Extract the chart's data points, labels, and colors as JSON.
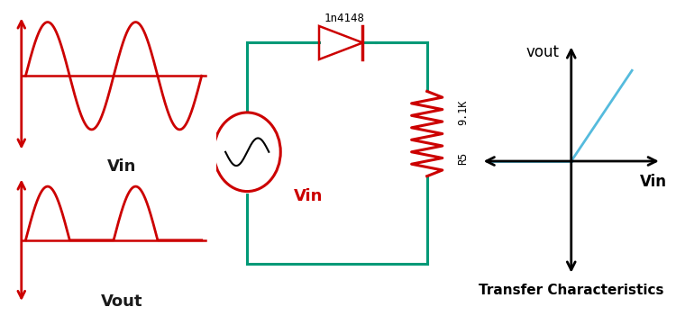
{
  "bg_color": "#ffffff",
  "red_color": "#cc0000",
  "green_color": "#009977",
  "blue_color": "#55bbdd",
  "black_color": "#000000",
  "vin_label": "Vin",
  "vout_label": "Vout",
  "diode_label": "1n4148",
  "resistor_label": "9.1K",
  "resistor_name": "R5",
  "vin_circuit_label": "Vin",
  "vout_axis_label": "vout",
  "vin_axis_label": "Vin",
  "transfer_title": "Transfer Characteristics",
  "label_color": "#1a1a1a"
}
